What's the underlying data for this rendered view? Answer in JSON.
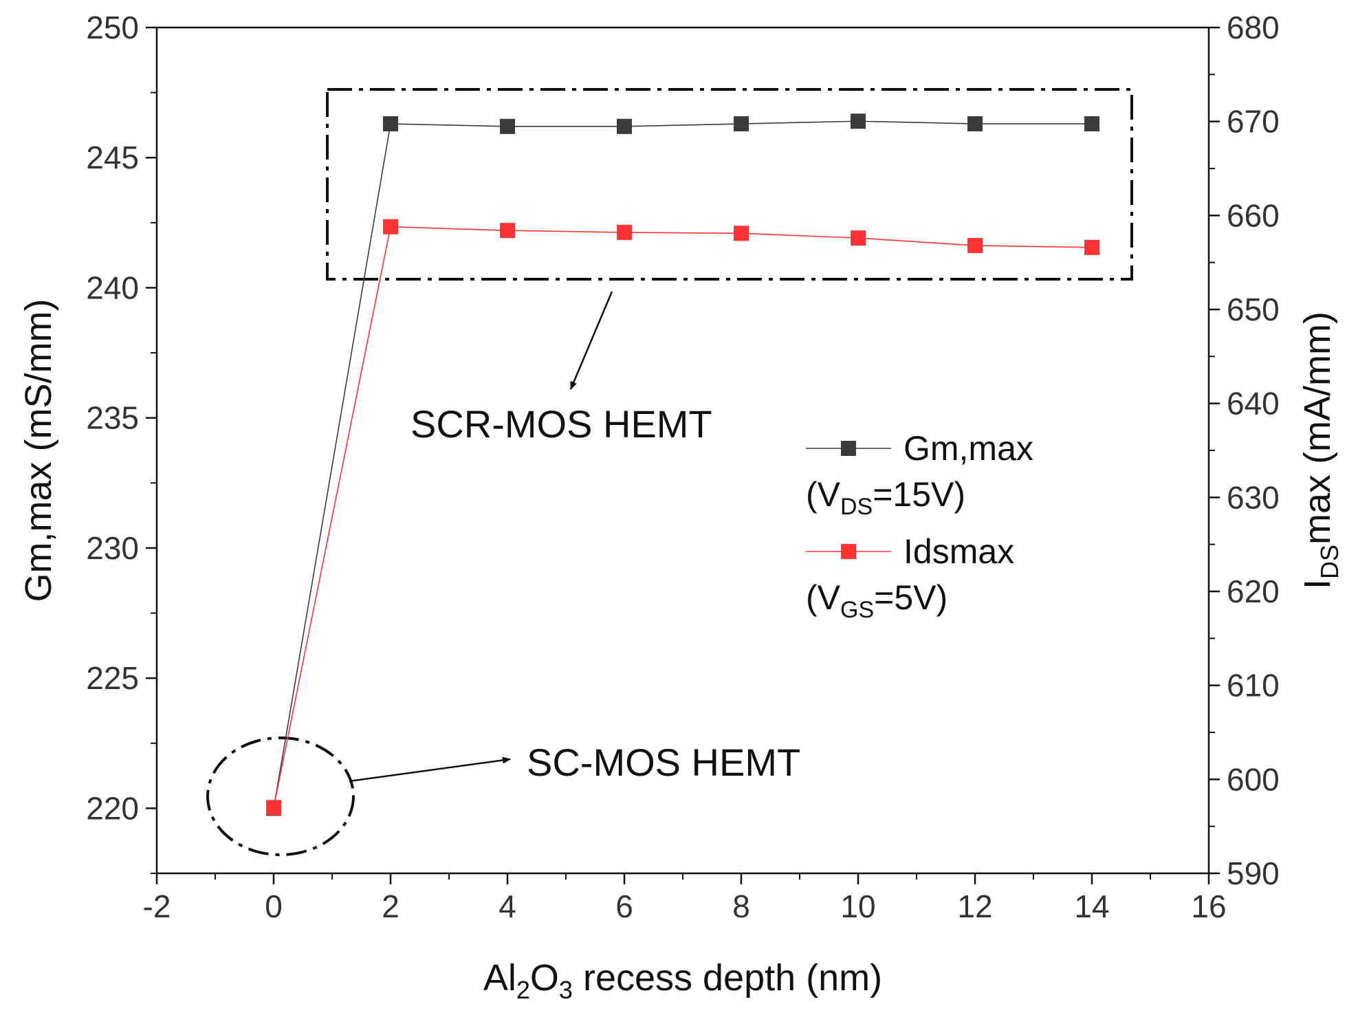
{
  "chart_data": {
    "type": "line",
    "x": [
      0,
      2,
      4,
      6,
      8,
      10,
      12,
      14
    ],
    "xlim": [
      -2,
      16
    ],
    "x_ticks": [
      -2,
      0,
      2,
      4,
      6,
      8,
      10,
      12,
      14,
      16
    ],
    "x_tick_labels": [
      "-2",
      "0",
      "2",
      "4",
      "6",
      "8",
      "10",
      "12",
      "14",
      "16"
    ],
    "xlabel": {
      "pre": "Al",
      "sub1": "2",
      "mid": "O",
      "sub2": "3",
      "post": " recess depth (nm)"
    },
    "y_left": {
      "label": "Gm,max (mS/mm)",
      "lim": [
        217.5,
        250
      ],
      "ticks": [
        220,
        225,
        230,
        235,
        240,
        245,
        250
      ],
      "tick_labels": [
        "220",
        "225",
        "230",
        "235",
        "240",
        "245",
        "250"
      ]
    },
    "y_right": {
      "label": {
        "pre": "I",
        "sub": "DS",
        "post": "max (mA/mm)"
      },
      "lim": [
        590,
        680
      ],
      "ticks": [
        590,
        600,
        610,
        620,
        630,
        640,
        650,
        660,
        670,
        680
      ],
      "tick_labels": [
        "590",
        "600",
        "610",
        "620",
        "630",
        "640",
        "650",
        "660",
        "670",
        "680"
      ]
    },
    "series": [
      {
        "name": "Gm,max",
        "condition": {
          "pre": "(V",
          "sub": "DS",
          "post": "=15V)"
        },
        "axis": "left",
        "color": "#3b3b3b",
        "values": [
          220,
          246.3,
          246.2,
          246.2,
          246.3,
          246.4,
          246.3,
          246.3
        ]
      },
      {
        "name": "Idsmax",
        "condition": {
          "pre": "(V",
          "sub": "GS",
          "post": "=5V)"
        },
        "axis": "right",
        "color": "#ff3333",
        "values": [
          597,
          658.8,
          658.4,
          658.2,
          658.1,
          657.6,
          656.8,
          656.6
        ]
      }
    ],
    "annotations": {
      "scr_label": "SCR-MOS HEMT",
      "sc_label": "SC-MOS HEMT"
    },
    "legend_position": "right-middle",
    "grid": false
  }
}
